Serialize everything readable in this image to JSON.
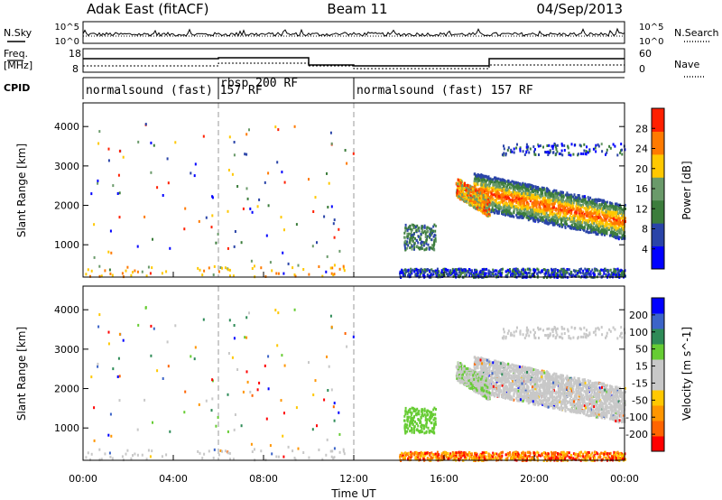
{
  "header": {
    "left": "Adak East (fitACF)",
    "center": "Beam 11",
    "right": "04/Sep/2013"
  },
  "noise_panel": {
    "left_label": "N.Sky",
    "right_label": "N.Search",
    "ticks_left": [
      "10^5",
      "10^0"
    ],
    "ticks_right": [
      "10^5",
      "10^0"
    ]
  },
  "freq_panel": {
    "left_label": "Freq.",
    "left_unit": "[MHz]",
    "right_label": "Nave",
    "ticks_left": [
      "18",
      "8"
    ],
    "ticks_right": [
      "60",
      "0"
    ]
  },
  "cpid": {
    "label": "CPID",
    "segments": [
      {
        "text": "normalsound (fast) 157 RF",
        "start_h": 0
      },
      {
        "text": "rbsp 200 RF",
        "start_h": 6
      },
      {
        "text": "normalsound (fast) 157 RF",
        "start_h": 12
      }
    ]
  },
  "colors": {
    "power": [
      "#0000ff",
      "#2a44a8",
      "#3c7d3c",
      "#6a9a6a",
      "#ffc800",
      "#ff7a00",
      "#ff2000"
    ],
    "velocity": [
      "#ff0000",
      "#ff6400",
      "#ff9600",
      "#ffc800",
      "#c8c8c8",
      "#c8c8c8",
      "#66cc33",
      "#2e8b57",
      "#3c64c8",
      "#0000ff"
    ]
  },
  "chart_data": [
    {
      "type": "heatmap",
      "title": "",
      "xlabel": "",
      "ylabel": "Slant Range [km]",
      "xlim": [
        0,
        24
      ],
      "ylim": [
        180,
        4600
      ],
      "x_ticks": [],
      "y_ticks": [
        "1000",
        "2000",
        "3000",
        "4000"
      ],
      "colorbar": {
        "label": "Power [dB]",
        "ticks": [
          "4",
          "8",
          "12",
          "16",
          "20",
          "24",
          "28"
        ],
        "range": [
          0,
          32
        ]
      },
      "regions": [
        {
          "x_range": [
            17.3,
            24
          ],
          "y_range": [
            1300,
            2800
          ],
          "level": "high power",
          "value": 26
        },
        {
          "x_range": [
            14.2,
            15.6
          ],
          "y_range": [
            900,
            1500
          ],
          "level": "low power",
          "value": 10
        },
        {
          "x_range": [
            14,
            24
          ],
          "y_range": [
            200,
            400
          ],
          "level": "low power",
          "value": 6
        },
        {
          "x_range": [
            16.5,
            18
          ],
          "y_range": [
            1800,
            2700
          ],
          "level": "high power",
          "value": 24
        }
      ]
    },
    {
      "type": "heatmap",
      "title": "",
      "xlabel": "Time UT",
      "ylabel": "Slant Range [km]",
      "xlim": [
        0,
        24
      ],
      "ylim": [
        180,
        4600
      ],
      "x_ticks": [
        "00:00",
        "04:00",
        "08:00",
        "12:00",
        "16:00",
        "20:00",
        "00:00"
      ],
      "y_ticks": [
        "1000",
        "2000",
        "3000",
        "4000"
      ],
      "colorbar": {
        "label": "Velocity [m s^-1]",
        "ticks": [
          "200",
          "100",
          "50",
          "15",
          "-15",
          "-50",
          "-100",
          "-200"
        ]
      },
      "regions": [
        {
          "x_range": [
            17.3,
            24
          ],
          "y_range": [
            1000,
            2900
          ],
          "level": "near zero velocity",
          "value": 0
        },
        {
          "x_range": [
            14.2,
            15.2
          ],
          "y_range": [
            900,
            1500
          ],
          "level": "positive velocity",
          "value": 40
        },
        {
          "x_range": [
            14,
            24
          ],
          "y_range": [
            200,
            500
          ],
          "level": "negative velocity",
          "value": -60
        }
      ]
    }
  ]
}
